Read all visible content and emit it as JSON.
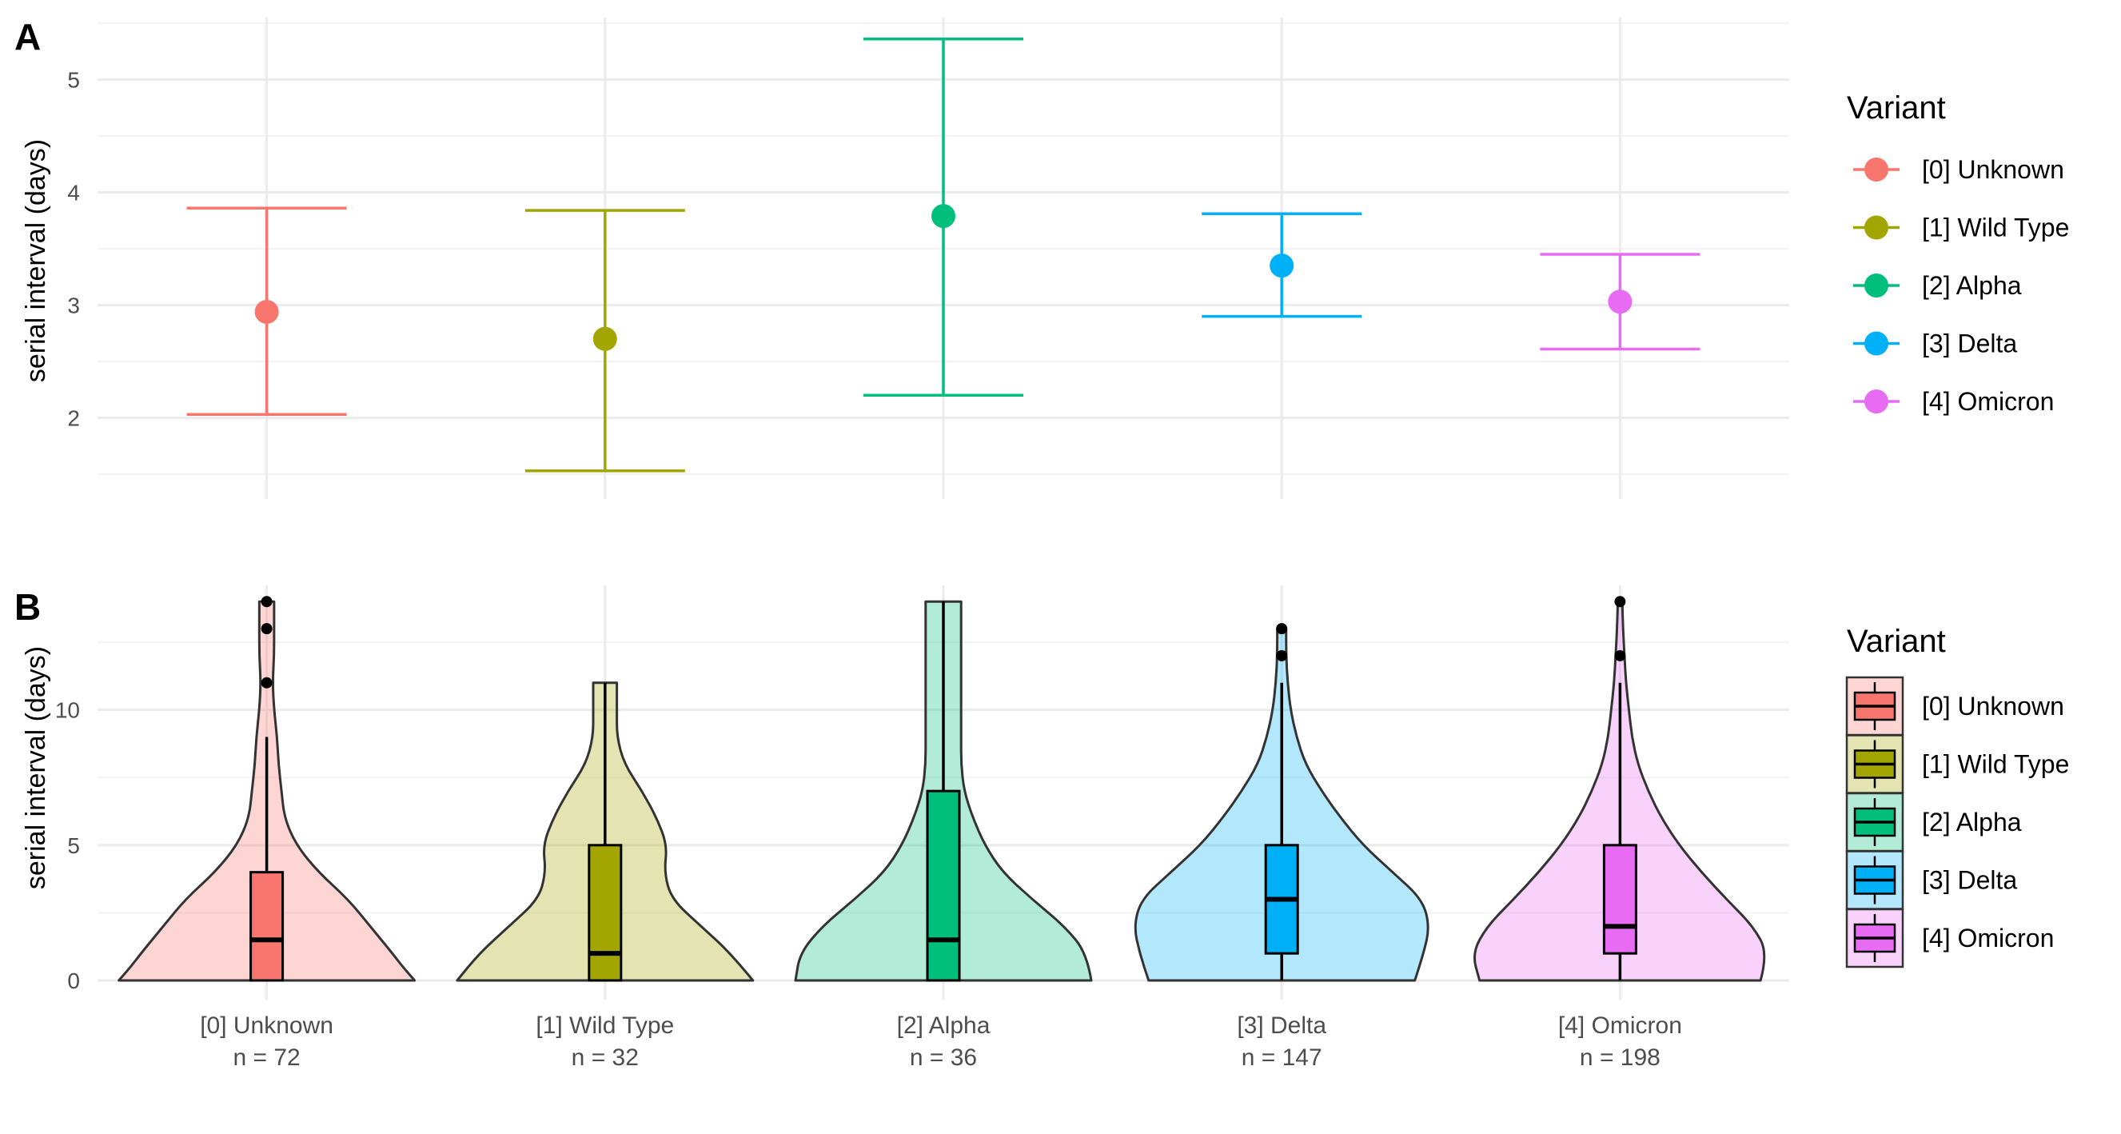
{
  "panels": {
    "a": {
      "letter": "A"
    },
    "b": {
      "letter": "B"
    }
  },
  "chart_data": [
    {
      "type": "scatter",
      "subtype": "point-errorbar",
      "title": "",
      "xlabel": "",
      "ylabel": "serial interval (days)",
      "ylim": [
        1.45,
        5.55
      ],
      "y_ticks": [
        "2",
        "3",
        "4",
        "5"
      ],
      "grid": true,
      "legend": {
        "title": "Variant",
        "placement": "right"
      },
      "categories": [
        "[0] Unknown",
        "[1] Wild Type",
        "[2] Alpha",
        "[3] Delta",
        "[4] Omicron"
      ],
      "colors": [
        "#F8766D",
        "#A3A500",
        "#00BF7D",
        "#00B0F6",
        "#E76BF3"
      ],
      "series": [
        {
          "name": "[0] Unknown",
          "mean": 2.94,
          "lower": 2.03,
          "upper": 3.86
        },
        {
          "name": "[1] Wild Type",
          "mean": 2.7,
          "lower": 1.53,
          "upper": 3.84
        },
        {
          "name": "[2] Alpha",
          "mean": 3.79,
          "lower": 2.2,
          "upper": 5.36
        },
        {
          "name": "[3] Delta",
          "mean": 3.35,
          "lower": 2.9,
          "upper": 3.81
        },
        {
          "name": "[4] Omicron",
          "mean": 3.03,
          "lower": 2.61,
          "upper": 3.45
        }
      ]
    },
    {
      "type": "violin",
      "overlay": "boxplot",
      "title": "",
      "xlabel": "",
      "ylabel": "serial interval (days)",
      "ylim": [
        0,
        14.6
      ],
      "y_ticks": [
        "0",
        "5",
        "10"
      ],
      "grid": true,
      "legend": {
        "title": "Variant",
        "placement": "right"
      },
      "categories": [
        "[0] Unknown",
        "[1] Wild Type",
        "[2] Alpha",
        "[3] Delta",
        "[4] Omicron"
      ],
      "counts": [
        "n = 72",
        "n = 32",
        "n = 36",
        "n = 147",
        "n = 198"
      ],
      "colors": [
        "#F8766D",
        "#A3A500",
        "#00BF7D",
        "#00B0F6",
        "#E76BF3"
      ],
      "series": [
        {
          "name": "[0] Unknown",
          "min": 0,
          "q1": 0,
          "median": 1.5,
          "q3": 4,
          "max": 9,
          "outliers": [
            11,
            13,
            14
          ],
          "density": [
            [
              0,
              1.0
            ],
            [
              0.5,
              0.92
            ],
            [
              1,
              0.85
            ],
            [
              2,
              0.7
            ],
            [
              3,
              0.55
            ],
            [
              4,
              0.35
            ],
            [
              5,
              0.2
            ],
            [
              6,
              0.12
            ],
            [
              7,
              0.1
            ],
            [
              8,
              0.08
            ],
            [
              9,
              0.07
            ],
            [
              10,
              0.05
            ],
            [
              11,
              0.04
            ],
            [
              12,
              0.05
            ],
            [
              13,
              0.05
            ],
            [
              14,
              0.05
            ]
          ]
        },
        {
          "name": "[1] Wild Type",
          "min": 0,
          "q1": 0,
          "median": 1,
          "q3": 5,
          "max": 11,
          "outliers": [],
          "density": [
            [
              0,
              1.0
            ],
            [
              1,
              0.85
            ],
            [
              2,
              0.65
            ],
            [
              3,
              0.45
            ],
            [
              4,
              0.4
            ],
            [
              5,
              0.42
            ],
            [
              6,
              0.35
            ],
            [
              7,
              0.25
            ],
            [
              8,
              0.13
            ],
            [
              9,
              0.08
            ],
            [
              10,
              0.08
            ],
            [
              11,
              0.08
            ]
          ]
        },
        {
          "name": "[2] Alpha",
          "min": 0,
          "q1": 0,
          "median": 1.5,
          "q3": 7,
          "max": 14,
          "outliers": [],
          "density": [
            [
              0,
              1.0
            ],
            [
              1,
              0.97
            ],
            [
              2,
              0.82
            ],
            [
              3,
              0.6
            ],
            [
              4,
              0.4
            ],
            [
              5,
              0.28
            ],
            [
              6,
              0.2
            ],
            [
              7,
              0.14
            ],
            [
              8,
              0.12
            ],
            [
              9,
              0.12
            ],
            [
              10,
              0.12
            ],
            [
              11,
              0.12
            ],
            [
              12,
              0.12
            ],
            [
              13,
              0.12
            ],
            [
              14,
              0.12
            ]
          ]
        },
        {
          "name": "[3] Delta",
          "min": 0,
          "q1": 1,
          "median": 3,
          "q3": 5,
          "max": 11,
          "outliers": [
            12,
            13
          ],
          "density": [
            [
              0,
              0.9
            ],
            [
              1,
              0.96
            ],
            [
              2,
              1.0
            ],
            [
              3,
              0.95
            ],
            [
              4,
              0.75
            ],
            [
              5,
              0.55
            ],
            [
              6,
              0.4
            ],
            [
              7,
              0.27
            ],
            [
              8,
              0.16
            ],
            [
              9,
              0.1
            ],
            [
              10,
              0.06
            ],
            [
              11,
              0.04
            ],
            [
              12,
              0.03
            ],
            [
              13,
              0.03
            ]
          ]
        },
        {
          "name": "[4] Omicron",
          "min": 0,
          "q1": 1,
          "median": 2,
          "q3": 5,
          "max": 11,
          "outliers": [
            12,
            14
          ],
          "density": [
            [
              0,
              0.95
            ],
            [
              1,
              1.0
            ],
            [
              2,
              0.9
            ],
            [
              3,
              0.72
            ],
            [
              4,
              0.55
            ],
            [
              5,
              0.4
            ],
            [
              6,
              0.28
            ],
            [
              7,
              0.19
            ],
            [
              8,
              0.12
            ],
            [
              9,
              0.08
            ],
            [
              10,
              0.06
            ],
            [
              11,
              0.04
            ],
            [
              12,
              0.03
            ],
            [
              13,
              0.02
            ],
            [
              14,
              0.015
            ]
          ]
        }
      ]
    }
  ]
}
